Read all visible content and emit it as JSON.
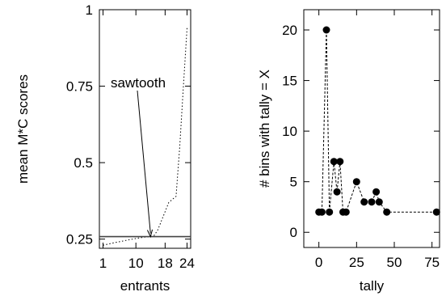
{
  "chart_data": [
    {
      "type": "line",
      "xlabel": "entrants",
      "ylabel": "mean M*C scores",
      "x_ticks": [
        1,
        10,
        18,
        24
      ],
      "y_ticks": [
        0.25,
        0.5,
        0.75,
        1
      ],
      "y_tick_labels": [
        "0.25",
        "0.5",
        "0.75",
        "1"
      ],
      "xlim": [
        0,
        25
      ],
      "ylim": [
        0.22,
        1.0
      ],
      "grid": false,
      "series": [
        {
          "style": "dotted",
          "x": [
            1,
            4,
            7,
            10,
            12,
            14,
            15,
            16,
            17,
            18,
            19,
            20,
            21,
            22,
            23,
            24
          ],
          "y": [
            0.23,
            0.238,
            0.245,
            0.252,
            0.256,
            0.258,
            0.262,
            0.28,
            0.31,
            0.34,
            0.37,
            0.38,
            0.39,
            0.55,
            0.75,
            0.94
          ]
        },
        {
          "style": "solid",
          "x": [
            0,
            25
          ],
          "y": [
            0.258,
            0.258
          ]
        }
      ],
      "annotations": [
        {
          "text": "sawtooth",
          "target_x": 14,
          "target_y": 0.258
        }
      ]
    },
    {
      "type": "scatter",
      "xlabel": "tally",
      "ylabel": "# bins with tally = X",
      "x_ticks": [
        0,
        25,
        50,
        75
      ],
      "y_ticks": [
        0,
        5,
        10,
        15,
        20
      ],
      "xlim": [
        -10,
        80
      ],
      "ylim": [
        -1.5,
        22
      ],
      "grid": false,
      "connected": "dashed",
      "series": [
        {
          "x": [
            0,
            2,
            5,
            7,
            10,
            12,
            14,
            16,
            18,
            25,
            30,
            35,
            38,
            40,
            45,
            78
          ],
          "y": [
            2,
            2,
            20,
            2,
            7,
            4,
            7,
            2,
            2,
            5,
            3,
            3,
            4,
            3,
            2,
            2
          ]
        }
      ]
    }
  ]
}
